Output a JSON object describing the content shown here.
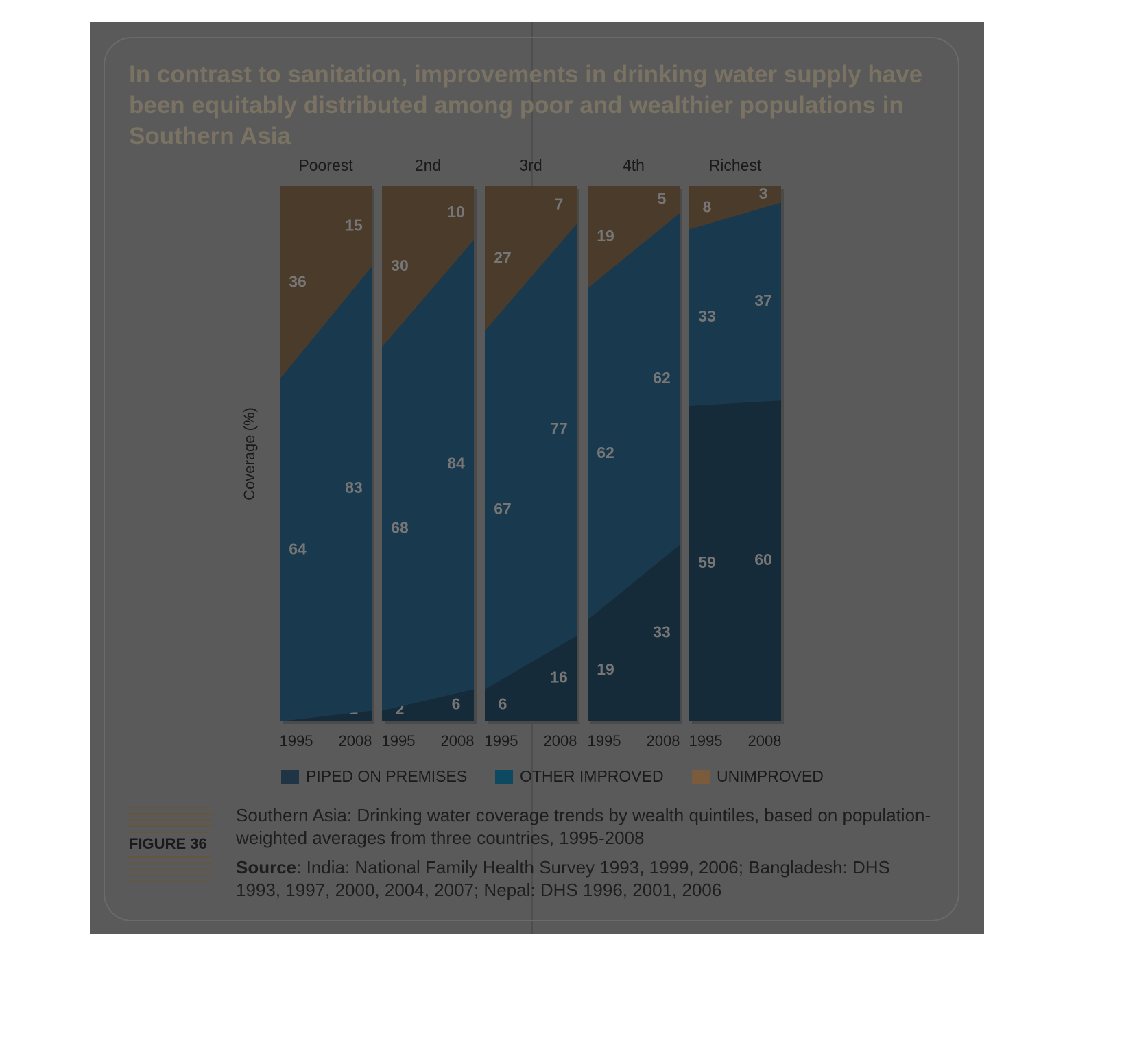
{
  "chart_data": {
    "type": "stacked-area-panels",
    "title": "In contrast to sanitation, improvements in drinking water supply have been equitably distributed among poor and wealthier populations in Southern Asia",
    "categories": [
      "Poorest",
      "2nd",
      "3rd",
      "4th",
      "Richest"
    ],
    "x": [
      "1995",
      "2008"
    ],
    "ylabel": "Coverage (%)",
    "ylim": [
      0,
      100
    ],
    "series": [
      {
        "name": "PIPED ON PREMISES",
        "color": "#152b39",
        "values": [
          [
            0,
            2
          ],
          [
            2,
            6
          ],
          [
            6,
            16
          ],
          [
            19,
            33
          ],
          [
            59,
            60
          ]
        ]
      },
      {
        "name": "OTHER IMPROVED",
        "color": "#18394e",
        "values": [
          [
            64,
            83
          ],
          [
            68,
            84
          ],
          [
            67,
            77
          ],
          [
            62,
            62
          ],
          [
            33,
            37
          ]
        ]
      },
      {
        "name": "UNIMPROVED",
        "color": "#4a3b2a",
        "values": [
          [
            36,
            15
          ],
          [
            30,
            10
          ],
          [
            27,
            7
          ],
          [
            19,
            5
          ],
          [
            8,
            3
          ]
        ]
      }
    ],
    "legend_colors": [
      "#1f3545",
      "#0d4a62",
      "#7a5b3c"
    ],
    "figure_label": "FIGURE 36",
    "caption": "Southern Asia: Drinking water coverage trends by wealth quintiles, based on population-weighted averages from three countries, 1995-2008",
    "source_label": "Source",
    "source_text": ": India: National Family Health Survey 1993, 1999, 2006; Bangladesh: DHS 1993, 1997, 2000, 2004, 2007; Nepal: DHS 1996, 2001, 2006"
  }
}
